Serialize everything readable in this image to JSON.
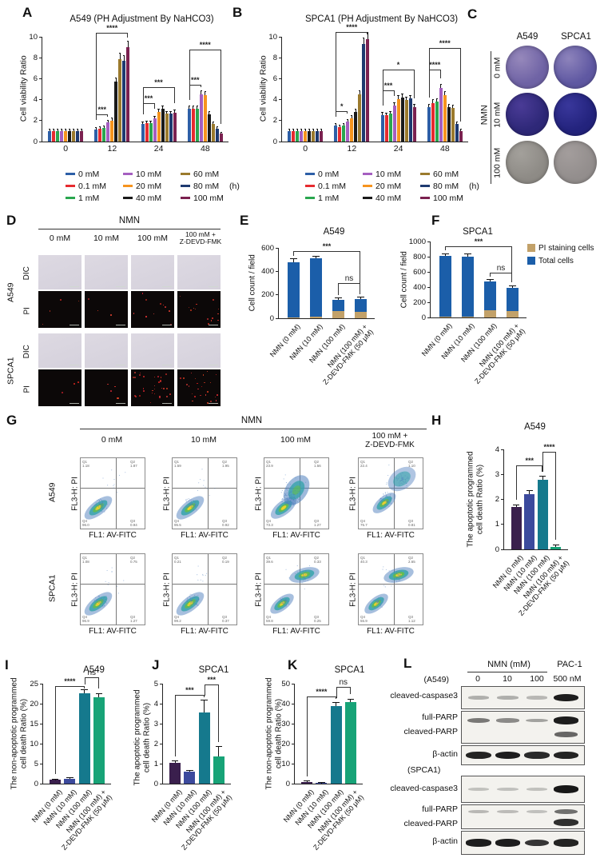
{
  "ui": {
    "panels": {
      "A": "A",
      "B": "B",
      "C": "C",
      "D": "D",
      "E": "E",
      "F": "F",
      "G": "G",
      "H": "H",
      "I": "I",
      "J": "J",
      "K": "K",
      "L": "L"
    }
  },
  "chart_data": [
    {
      "panel": "A",
      "type": "grouped_bar",
      "title": "A549 (PH Adjustment By NaHCO3)",
      "ylabel": "Cell viability Ratio",
      "xunit": "(h)",
      "ymax": 10,
      "yticks": [
        0,
        2,
        4,
        6,
        8,
        10
      ],
      "categories": [
        "0",
        "12",
        "24",
        "48"
      ],
      "series": [
        {
          "name": "0 mM",
          "color": "#2d5fa7",
          "values": [
            1.0,
            1.15,
            1.7,
            3.1
          ]
        },
        {
          "name": "0.1 mM",
          "color": "#e62b2f",
          "values": [
            1.0,
            1.2,
            1.75,
            3.1
          ]
        },
        {
          "name": "1 mM",
          "color": "#2aa64f",
          "values": [
            1.0,
            1.3,
            1.75,
            3.1
          ]
        },
        {
          "name": "10 mM",
          "color": "#a55fc0",
          "values": [
            1.0,
            1.8,
            2.2,
            4.5
          ]
        },
        {
          "name": "20 mM",
          "color": "#f6941e",
          "values": [
            1.0,
            2.0,
            2.85,
            4.4
          ]
        },
        {
          "name": "40 mM",
          "color": "#1a1a1a",
          "values": [
            1.0,
            5.7,
            3.1,
            2.6
          ]
        },
        {
          "name": "60 mM",
          "color": "#9b7a2d",
          "values": [
            1.0,
            7.9,
            2.65,
            1.65
          ]
        },
        {
          "name": "80 mM",
          "color": "#1e3a70",
          "values": [
            1.0,
            7.7,
            2.65,
            1.25
          ]
        },
        {
          "name": "100 mM",
          "color": "#7b2150",
          "values": [
            1.0,
            9.0,
            2.75,
            0.75
          ]
        }
      ],
      "brackets": [
        {
          "group": 1,
          "from": 0,
          "to": 3,
          "y": 2.6,
          "label": "***"
        },
        {
          "group": 1,
          "from": 0,
          "to": 8,
          "y": 10.35,
          "label": "****"
        },
        {
          "group": 2,
          "from": 0,
          "to": 3,
          "y": 3.7,
          "label": "***"
        },
        {
          "group": 2,
          "from": 0,
          "to": 8,
          "y": 5.2,
          "label": "***"
        },
        {
          "group": 3,
          "from": 0,
          "to": 3,
          "y": 5.4,
          "label": "***"
        },
        {
          "group": 3,
          "from": 0,
          "to": 8,
          "y": 8.8,
          "label": "****"
        }
      ]
    },
    {
      "panel": "B",
      "type": "grouped_bar",
      "title": "SPCA1 (PH Adjustment By NaHCO3)",
      "ylabel": "Cell viability Ratio",
      "xunit": "(h)",
      "ymax": 10,
      "yticks": [
        0,
        2,
        4,
        6,
        8,
        10
      ],
      "categories": [
        "0",
        "12",
        "24",
        "48"
      ],
      "series": [
        {
          "name": "0 mM",
          "color": "#2d5fa7",
          "values": [
            1.0,
            1.5,
            2.55,
            3.3
          ]
        },
        {
          "name": "0.1 mM",
          "color": "#e62b2f",
          "values": [
            1.0,
            1.4,
            2.5,
            3.7
          ]
        },
        {
          "name": "1 mM",
          "color": "#2aa64f",
          "values": [
            1.0,
            1.55,
            2.65,
            3.8
          ]
        },
        {
          "name": "10 mM",
          "color": "#a55fc0",
          "values": [
            1.0,
            1.9,
            3.45,
            5.1
          ]
        },
        {
          "name": "20 mM",
          "color": "#f6941e",
          "values": [
            1.0,
            2.25,
            4.05,
            4.4
          ]
        },
        {
          "name": "40 mM",
          "color": "#1a1a1a",
          "values": [
            1.0,
            2.85,
            4.2,
            3.3
          ]
        },
        {
          "name": "60 mM",
          "color": "#9b7a2d",
          "values": [
            1.0,
            4.5,
            3.95,
            3.2
          ]
        },
        {
          "name": "80 mM",
          "color": "#1e3a70",
          "values": [
            1.0,
            9.3,
            4.1,
            1.7
          ]
        },
        {
          "name": "100 mM",
          "color": "#7b2150",
          "values": [
            1.0,
            9.8,
            3.25,
            1.0
          ]
        }
      ],
      "brackets": [
        {
          "group": 1,
          "from": 0,
          "to": 3,
          "y": 2.9,
          "label": "*"
        },
        {
          "group": 1,
          "from": 0,
          "to": 8,
          "y": 10.45,
          "label": "****"
        },
        {
          "group": 2,
          "from": 0,
          "to": 3,
          "y": 4.9,
          "label": "***"
        },
        {
          "group": 2,
          "from": 0,
          "to": 8,
          "y": 6.9,
          "label": "*"
        },
        {
          "group": 3,
          "from": 0,
          "to": 3,
          "y": 6.9,
          "label": "****"
        },
        {
          "group": 3,
          "from": 0,
          "to": 8,
          "y": 8.9,
          "label": "****"
        }
      ]
    },
    {
      "panel": "E",
      "type": "stacked_bar",
      "title": "A549",
      "ylabel": "Cell count / field",
      "ymax": 600,
      "yticks": [
        0,
        200,
        400,
        600
      ],
      "categories": [
        "NMN (0 mM)",
        "NMN (10 mM)",
        "NMN (100 mM)",
        "NMN (100 mM) +\nZ-DEVD-FMK (50 μM)"
      ],
      "series": [
        {
          "name": "PI staining cells",
          "color": "#c2a169",
          "values": [
            10,
            12,
            62,
            58
          ]
        },
        {
          "name": "Total cells",
          "color": "#1b5ea9",
          "values": [
            475,
            510,
            160,
            165
          ]
        }
      ],
      "err": [
        30,
        12,
        10,
        12
      ],
      "brackets": [
        {
          "from": 0,
          "to": 3,
          "y": 572,
          "label": "***"
        },
        {
          "from": 2,
          "to": 3,
          "y": 300,
          "label": "ns"
        }
      ]
    },
    {
      "panel": "F",
      "type": "stacked_bar",
      "title": "SPCA1",
      "ylabel": "Cell count / field",
      "ymax": 1000,
      "yticks": [
        0,
        200,
        400,
        600,
        800,
        1000
      ],
      "categories": [
        "NMN (0 mM)",
        "NMN (10 mM)",
        "NMN (100 mM)",
        "NMN (100 mM) +\nZ-DEVD-FMK (50 μM)"
      ],
      "series": [
        {
          "name": "PI staining cells",
          "color": "#c2a169",
          "values": [
            12,
            15,
            100,
            80
          ]
        },
        {
          "name": "Total cells",
          "color": "#1b5ea9",
          "values": [
            810,
            805,
            470,
            390
          ]
        }
      ],
      "err": [
        25,
        25,
        20,
        18
      ],
      "brackets": [
        {
          "from": 0,
          "to": 3,
          "y": 935,
          "label": "***"
        },
        {
          "from": 2,
          "to": 3,
          "y": 585,
          "label": "ns"
        }
      ]
    },
    {
      "panel": "H",
      "type": "bar",
      "title": "A549",
      "ylabel": "The apoptotic programmed\ncell death Ratio (%)",
      "ymax": 4,
      "yticks": [
        0,
        1,
        2,
        3,
        4
      ],
      "categories": [
        "NMN (0 mM)",
        "NMN (10 mM)",
        "NMN (100 mM)",
        "NMN (100 mM) +\nZ-DEVD-FMK (50 μM)"
      ],
      "values": [
        1.7,
        2.2,
        2.8,
        0.1
      ],
      "err": [
        0.07,
        0.15,
        0.1,
        0.07
      ],
      "colors": [
        "#3a1f4d",
        "#3c4a9d",
        "#15798d",
        "#17a377"
      ],
      "brackets": [
        {
          "from": 0,
          "to": 2,
          "y": 3.35,
          "label": "***"
        },
        {
          "from": 2,
          "to": 3,
          "y": 3.9,
          "label": "****"
        }
      ]
    },
    {
      "panel": "I",
      "type": "bar",
      "title": "A549",
      "ylabel": "The non-apoptotic programmed\ncell death Ratio (%)",
      "ymax": 25,
      "yticks": [
        0,
        5,
        10,
        15,
        20,
        25
      ],
      "categories": [
        "NMN (0 mM)",
        "NMN (10 mM)",
        "NMN (100 mM)",
        "NMN (100 mM) +\nZ-DEVD-FMK (50 μM)"
      ],
      "values": [
        1.0,
        1.3,
        22.6,
        21.6
      ],
      "err": [
        0.1,
        0.15,
        0.9,
        0.9
      ],
      "colors": [
        "#3a1f4d",
        "#3c4a9d",
        "#15798d",
        "#17a377"
      ],
      "brackets": [
        {
          "from": 0,
          "to": 2,
          "y": 24.5,
          "label": "****"
        },
        {
          "from": 2,
          "to": 3,
          "y": 26.6,
          "label": "ns"
        }
      ]
    },
    {
      "panel": "J",
      "type": "bar",
      "title": "SPCA1",
      "ylabel": "The apoptotic programmed\ncell death Ratio (%)",
      "ymax": 5,
      "yticks": [
        0,
        1,
        2,
        3,
        4,
        5
      ],
      "categories": [
        "NMN (0 mM)",
        "NMN (10 mM)",
        "NMN (100 mM)",
        "NMN (100 mM) +\nZ-DEVD-FMK (50 μM)"
      ],
      "values": [
        1.05,
        0.6,
        3.55,
        1.35
      ],
      "err": [
        0.08,
        0.05,
        0.6,
        0.5
      ],
      "colors": [
        "#3a1f4d",
        "#3c4a9d",
        "#15798d",
        "#17a377"
      ],
      "brackets": [
        {
          "from": 0,
          "to": 2,
          "y": 4.45,
          "label": "***"
        },
        {
          "from": 2,
          "to": 3,
          "y": 4.95,
          "label": "***"
        }
      ]
    },
    {
      "panel": "K",
      "type": "bar",
      "title": "SPCA1",
      "ylabel": "The non-apoptotic programmed\ncell death Ratio (%)",
      "ymax": 50,
      "yticks": [
        0,
        10,
        20,
        30,
        40,
        50
      ],
      "categories": [
        "NMN (0 mM)",
        "NMN (10 mM)",
        "NMN (100 mM)",
        "NMN (100 mM) +\nZ-DEVD-FMK (50 μM)"
      ],
      "values": [
        1.0,
        0.3,
        39,
        41
      ],
      "err": [
        0.15,
        0.05,
        1.5,
        1.2
      ],
      "colors": [
        "#3a1f4d",
        "#3c4a9d",
        "#15798d",
        "#17a377"
      ],
      "brackets": [
        {
          "from": 0,
          "to": 2,
          "y": 43.5,
          "label": "****"
        },
        {
          "from": 2,
          "to": 3,
          "y": 48.5,
          "label": "ns"
        }
      ]
    }
  ],
  "panelC": {
    "columns": [
      "A549",
      "SPCA1"
    ],
    "rows": [
      "0 mM",
      "10 mM",
      "100 mM"
    ],
    "group": "NMN",
    "well_colors": [
      [
        [
          "#9688bb",
          "#6f63a5"
        ],
        [
          "#8d83bb",
          "#5f58a2"
        ]
      ],
      [
        [
          "#4a3b96",
          "#2e2878"
        ],
        [
          "#39379b",
          "#23237d"
        ]
      ],
      [
        [
          "#a3a09b",
          "#8e8b86"
        ],
        [
          "#a39d9c",
          "#938e8d"
        ]
      ]
    ]
  },
  "panelD": {
    "header": "NMN",
    "columns": [
      "0 mM",
      "10 mM",
      "100 mM",
      "100 mM +\nZ-DEVD-FMK"
    ],
    "cells": [
      "A549",
      "SPCA1"
    ],
    "modes": [
      "DIC",
      "PI"
    ],
    "pi_dots": [
      [
        4,
        3,
        10,
        14
      ],
      [
        3,
        4,
        32,
        26
      ]
    ]
  },
  "panelG": {
    "header": "NMN",
    "columns": [
      "0 mM",
      "10 mM",
      "100 mM",
      "100 mM +\nZ-DEVD-FMK"
    ],
    "rows": [
      "A549",
      "SPCA1"
    ],
    "xlabel": "FL1: AV-FITC",
    "ylabel": "FL3-H: PI",
    "plots": [
      [
        {
          "pattern": "single",
          "q1": "1.18",
          "q2": "1.87",
          "q3": "0.94",
          "q4": "96.0"
        },
        {
          "pattern": "single",
          "q1": "1.59",
          "q2": "1.95",
          "q3": "0.92",
          "q4": "95.5"
        },
        {
          "pattern": "smear",
          "q1": "23.9",
          "q2": "1.56",
          "q3": "1.27",
          "q4": "73.3"
        },
        {
          "pattern": "uppercloud",
          "q1": "22.4",
          "q2": "1.10",
          "q3": "0.81",
          "q4": "75.7"
        }
      ],
      [
        {
          "pattern": "single",
          "q1": "1.08",
          "q2": "0.75",
          "q3": "1.27",
          "q4": "96.9"
        },
        {
          "pattern": "single",
          "q1": "0.21",
          "q2": "0.19",
          "q3": "0.37",
          "q4": "99.2"
        },
        {
          "pattern": "double",
          "q1": "39.6",
          "q2": "0.33",
          "q3": "0.25",
          "q4": "59.8"
        },
        {
          "pattern": "double",
          "q1": "40.3",
          "q2": "2.65",
          "q3": "1.12",
          "q4": "55.9"
        }
      ]
    ]
  },
  "panelL": {
    "header_nmn": "NMN (mM)",
    "header_pac": "PAC-1",
    "lanes": [
      "0",
      "10",
      "100",
      "500 nM"
    ],
    "groups": [
      {
        "cell": "(A549)",
        "rows": [
          {
            "labels": [
              "cleaved-caspase3"
            ],
            "bands": [
              [
                0.15,
                0.15,
                0.1,
                0.95
              ]
            ]
          },
          {
            "labels": [
              "full-PARP",
              "cleaved-PARP"
            ],
            "bands": [
              [
                0.45,
                0.35,
                0.22,
                0.95
              ],
              [
                0,
                0,
                0,
                0.55
              ]
            ]
          },
          {
            "labels": [
              "β-actin"
            ],
            "bands": [
              [
                0.92,
                0.95,
                0.88,
                0.92
              ]
            ]
          }
        ]
      },
      {
        "cell": "(SPCA1)",
        "rows": [
          {
            "labels": [
              "cleaved-caspase3"
            ],
            "bands": [
              [
                0.05,
                0.06,
                0.05,
                0.98
              ]
            ]
          },
          {
            "labels": [
              "full-PARP",
              "cleaved-PARP"
            ],
            "bands": [
              [
                0.1,
                0.08,
                0.06,
                0.5
              ],
              [
                0,
                0,
                0,
                0.85
              ]
            ]
          },
          {
            "labels": [
              "β-actin"
            ],
            "bands": [
              [
                0.95,
                0.95,
                0.82,
                0.92
              ]
            ]
          }
        ]
      }
    ]
  }
}
